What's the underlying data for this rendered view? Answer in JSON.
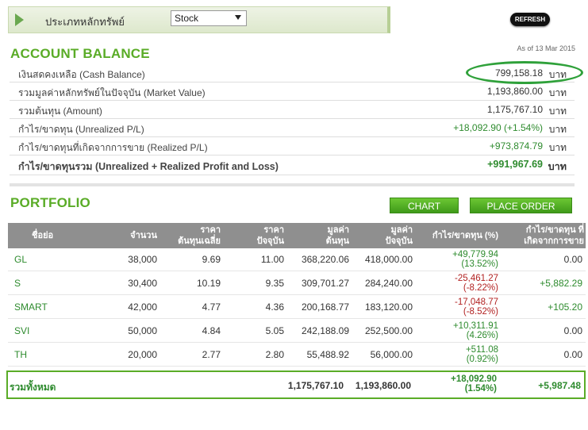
{
  "filter": {
    "label": "ประเภทหลักทรัพย์",
    "selected": "Stock"
  },
  "refresh_label": "REFRESH",
  "account": {
    "title": "ACCOUNT BALANCE",
    "as_of": "As of 13 Mar 2015",
    "rows": [
      {
        "label": "เงินสดคงเหลือ (Cash Balance)",
        "value": "799,158.18",
        "unit": "บาท",
        "tone": "normal"
      },
      {
        "label": "รวมมูลค่าหลักทรัพย์ในปัจจุบัน (Market Value)",
        "value": "1,193,860.00",
        "unit": "บาท",
        "tone": "normal"
      },
      {
        "label": "รวมต้นทุน (Amount)",
        "value": "1,175,767.10",
        "unit": "บาท",
        "tone": "normal"
      },
      {
        "label": "กำไร/ขาดทุน (Unrealized P/L)",
        "value": "+18,092.90 (+1.54%)",
        "unit": "บาท",
        "tone": "green"
      },
      {
        "label": "กำไร/ขาดทุนที่เกิดจากการขาย (Realized P/L)",
        "value": "+973,874.79",
        "unit": "บาท",
        "tone": "green"
      },
      {
        "label": "กำไร/ขาดทุนรวม (Unrealized + Realized Profit and Loss)",
        "value": "+991,967.69",
        "unit": "บาท",
        "tone": "green"
      }
    ]
  },
  "portfolio": {
    "title": "PORTFOLIO",
    "chart_button": "CHART",
    "order_button": "PLACE ORDER",
    "headers": {
      "symbol": "ชื่อย่อ",
      "qty": "จำนวน",
      "avg_cost_1": "ราคา",
      "avg_cost_2": "ต้นทุนเฉลี่ย",
      "price_1": "ราคา",
      "price_2": "ปัจจุบัน",
      "cost_1": "มูลค่า",
      "cost_2": "ต้นทุน",
      "mv_1": "มูลค่า",
      "mv_2": "ปัจจุบัน",
      "upl": "กำไร/ขาดทุน (%)",
      "rpl_1": "กำไร/ขาดทุน ที่",
      "rpl_2": "เกิดจากการขาย"
    },
    "rows": [
      {
        "symbol": "GL",
        "qty": "38,000",
        "avg": "9.69",
        "price": "11.00",
        "cost": "368,220.06",
        "mv": "418,000.00",
        "upl": "+49,779.94",
        "upl_pct": "(13.52%)",
        "upl_tone": "green",
        "rpl": "0.00",
        "rpl_tone": "normal"
      },
      {
        "symbol": "S",
        "qty": "30,400",
        "avg": "10.19",
        "price": "9.35",
        "cost": "309,701.27",
        "mv": "284,240.00",
        "upl": "-25,461.27",
        "upl_pct": "(-8.22%)",
        "upl_tone": "red",
        "rpl": "+5,882.29",
        "rpl_tone": "green"
      },
      {
        "symbol": "SMART",
        "qty": "42,000",
        "avg": "4.77",
        "price": "4.36",
        "cost": "200,168.77",
        "mv": "183,120.00",
        "upl": "-17,048.77",
        "upl_pct": "(-8.52%)",
        "upl_tone": "red",
        "rpl": "+105.20",
        "rpl_tone": "green"
      },
      {
        "symbol": "SVI",
        "qty": "50,000",
        "avg": "4.84",
        "price": "5.05",
        "cost": "242,188.09",
        "mv": "252,500.00",
        "upl": "+10,311.91",
        "upl_pct": "(4.26%)",
        "upl_tone": "green",
        "rpl": "0.00",
        "rpl_tone": "normal"
      },
      {
        "symbol": "TH",
        "qty": "20,000",
        "avg": "2.77",
        "price": "2.80",
        "cost": "55,488.92",
        "mv": "56,000.00",
        "upl": "+511.08",
        "upl_pct": "(0.92%)",
        "upl_tone": "green",
        "rpl": "0.00",
        "rpl_tone": "normal"
      }
    ],
    "total": {
      "label": "รวมทั้งหมด",
      "cost": "1,175,767.10",
      "mv": "1,193,860.00",
      "upl": "+18,092.90",
      "upl_pct": "(1.54%)",
      "rpl": "+5,987.48"
    }
  },
  "colors": {
    "brand_green": "#5aac27",
    "positive": "#2e8b2e",
    "negative": "#b22222",
    "header_gray": "#8f8f8f"
  }
}
